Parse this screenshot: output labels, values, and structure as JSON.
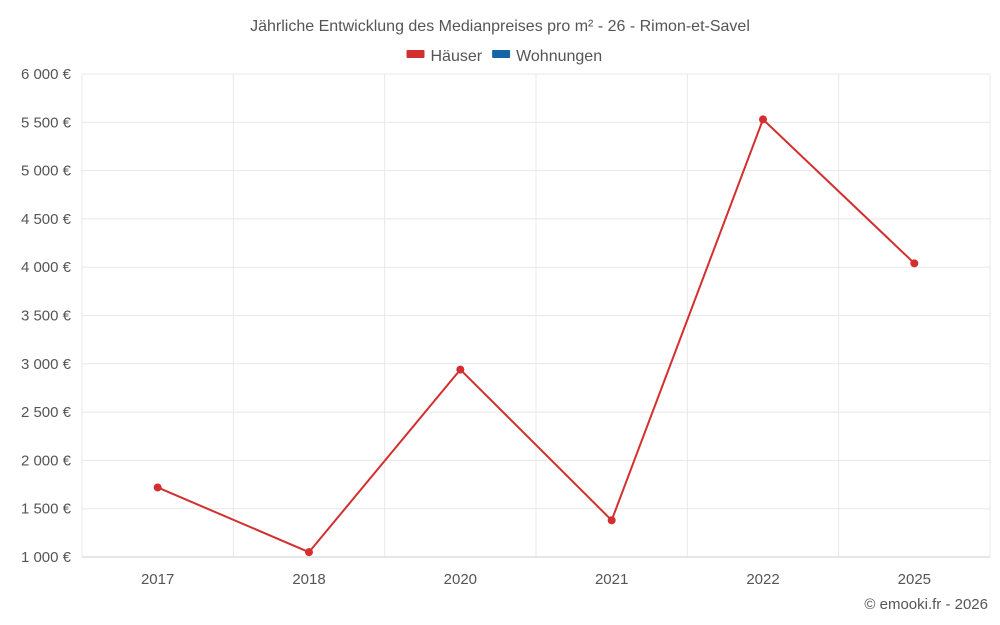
{
  "chart_data": {
    "type": "line",
    "title": "Jährliche Entwicklung des Medianpreises pro m² - 26 - Rimon-et-Savel",
    "categories": [
      "2017",
      "2018",
      "2020",
      "2021",
      "2022",
      "2025"
    ],
    "series": [
      {
        "name": "Häuser",
        "color": "#d32f2f",
        "values": [
          1720,
          1050,
          2940,
          1380,
          5530,
          4040
        ]
      },
      {
        "name": "Wohnungen",
        "color": "#1565a6",
        "values": [
          null,
          null,
          null,
          null,
          null,
          null
        ]
      }
    ],
    "ylim": [
      1000,
      6000
    ],
    "y_ticks": [
      {
        "value": 1000,
        "label": "1 000 €"
      },
      {
        "value": 1500,
        "label": "1 500 €"
      },
      {
        "value": 2000,
        "label": "2 000 €"
      },
      {
        "value": 2500,
        "label": "2 500 €"
      },
      {
        "value": 3000,
        "label": "3 000 €"
      },
      {
        "value": 3500,
        "label": "3 500 €"
      },
      {
        "value": 4000,
        "label": "4 000 €"
      },
      {
        "value": 4500,
        "label": "4 500 €"
      },
      {
        "value": 5000,
        "label": "5 000 €"
      },
      {
        "value": 5500,
        "label": "5 500 €"
      },
      {
        "value": 6000,
        "label": "6 000 €"
      }
    ],
    "xlabel": "",
    "ylabel": "",
    "grid": true,
    "legend_position": "top-center"
  },
  "footer": {
    "credit": "© emooki.fr - 2026"
  }
}
